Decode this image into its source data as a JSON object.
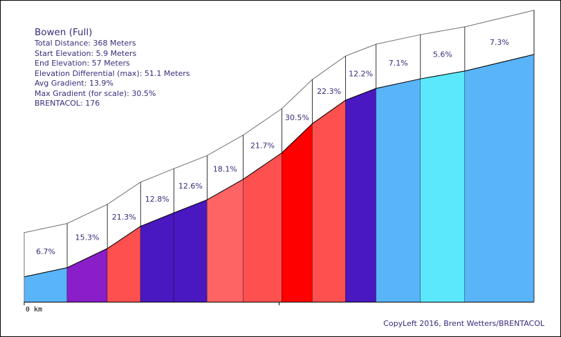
{
  "chart_data": {
    "type": "area",
    "title": "Bowen (Full)",
    "stats": [
      "Total Distance: 368 Meters",
      "Start Elevation: 5.9 Meters",
      "End Elevation: 57 Meters",
      "Elevation Differential (max): 51.1 Meters",
      "Avg Gradient: 13.9%",
      "Max Gradient (for scale): 30.5%",
      "BRENTACOL: 176"
    ],
    "x_start_label": "0 km",
    "x_unit": "meters",
    "x_range": [
      0,
      368
    ],
    "y_unit": "meters",
    "segments": [
      {
        "gradient_label": "6.7%",
        "x0": 0,
        "x1": 31,
        "y0": 5.9,
        "y1": 8.0,
        "color": "#5ab4f8"
      },
      {
        "gradient_label": "15.3%",
        "x0": 31,
        "x1": 60,
        "y0": 8.0,
        "y1": 12.4,
        "color": "#8a1ec8"
      },
      {
        "gradient_label": "21.3%",
        "x0": 60,
        "x1": 84,
        "y0": 12.4,
        "y1": 17.5,
        "color": "#ff5050"
      },
      {
        "gradient_label": "12.8%",
        "x0": 84,
        "x1": 108,
        "y0": 17.5,
        "y1": 20.6,
        "color": "#4a18c0"
      },
      {
        "gradient_label": "12.6%",
        "x0": 108,
        "x1": 132,
        "y0": 20.6,
        "y1": 23.6,
        "color": "#4a18c0"
      },
      {
        "gradient_label": "18.1%",
        "x0": 132,
        "x1": 158,
        "y0": 23.6,
        "y1": 28.3,
        "color": "#ff6464"
      },
      {
        "gradient_label": "21.7%",
        "x0": 158,
        "x1": 186,
        "y0": 28.3,
        "y1": 34.4,
        "color": "#ff5050"
      },
      {
        "gradient_label": "30.5%",
        "x0": 186,
        "x1": 208,
        "y0": 34.4,
        "y1": 41.1,
        "color": "#ff0000"
      },
      {
        "gradient_label": "22.3%",
        "x0": 208,
        "x1": 232,
        "y0": 41.1,
        "y1": 46.5,
        "color": "#ff5050"
      },
      {
        "gradient_label": "12.2%",
        "x0": 232,
        "x1": 254,
        "y0": 46.5,
        "y1": 49.2,
        "color": "#4a18c0"
      },
      {
        "gradient_label": "7.1%",
        "x0": 254,
        "x1": 286,
        "y0": 49.2,
        "y1": 51.4,
        "color": "#5ab4f8"
      },
      {
        "gradient_label": "5.6%",
        "x0": 286,
        "x1": 318,
        "y0": 51.4,
        "y1": 53.2,
        "color": "#5ce8fc"
      },
      {
        "gradient_label": "7.3%",
        "x0": 318,
        "x1": 368,
        "y0": 53.2,
        "y1": 57.0,
        "color": "#5ab4f8"
      }
    ]
  },
  "footer": "CopyLeft 2016, Brent Wetters/BRENTACOL"
}
